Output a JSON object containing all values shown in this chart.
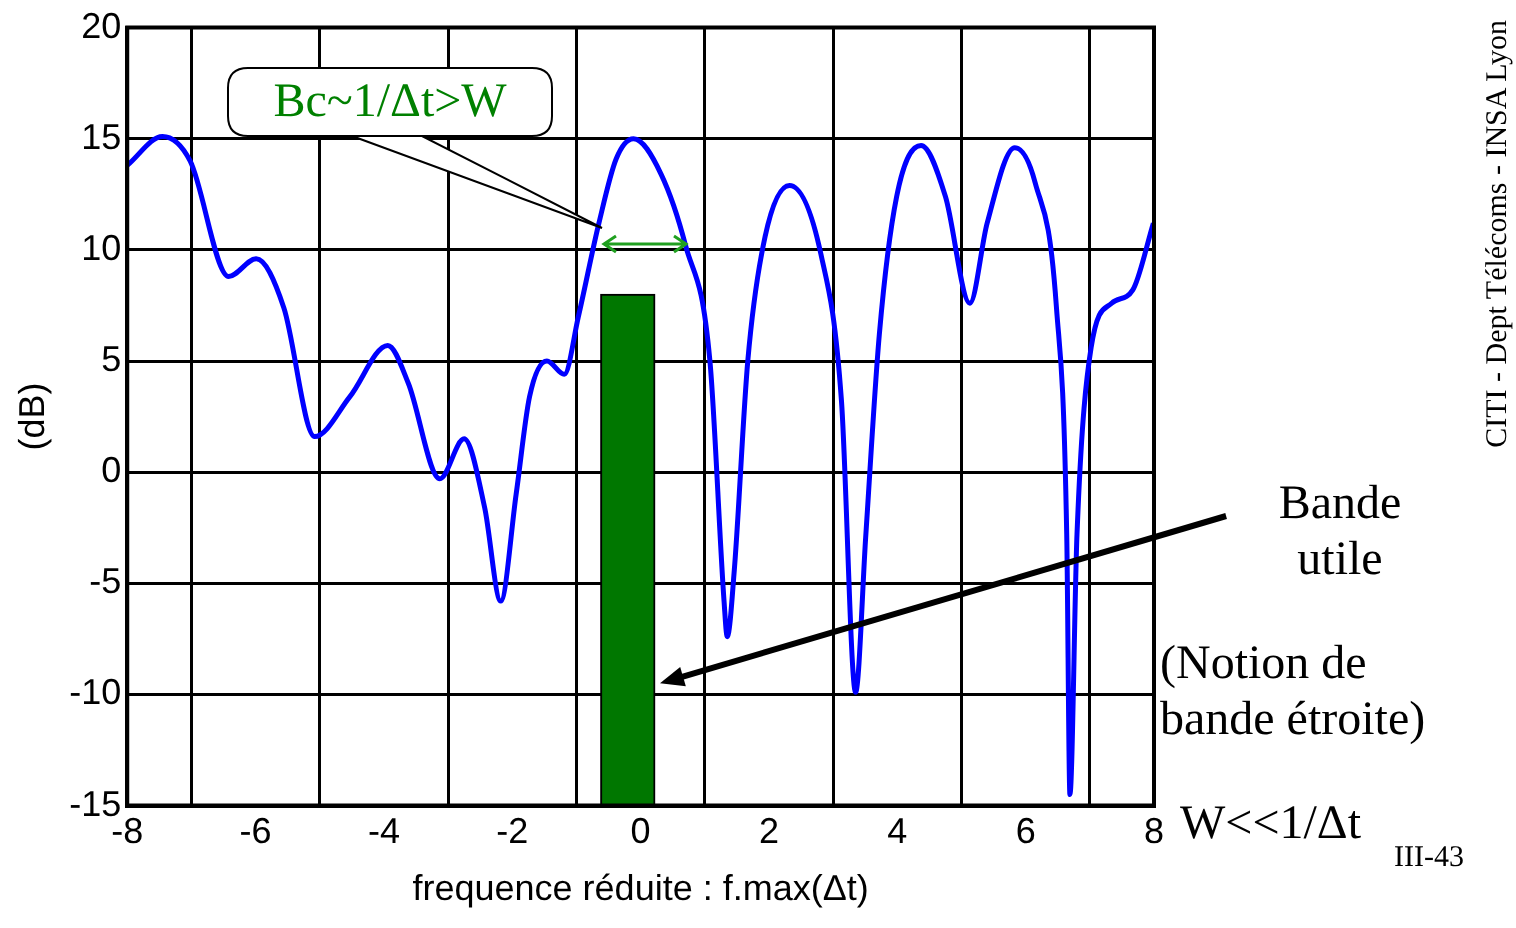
{
  "chart_data": {
    "type": "line",
    "xlabel": "frequence réduite : f.max(Δt)",
    "ylabel": "(dB)",
    "xlim": [
      -8,
      8
    ],
    "xticks": [
      -8,
      -6,
      -4,
      -2,
      0,
      2,
      4,
      6,
      8
    ],
    "ylim": [
      -15,
      20
    ],
    "yticks": [
      -15,
      -10,
      -5,
      0,
      5,
      10,
      15,
      20
    ],
    "grid": true,
    "legend": false,
    "marker": "none",
    "series": [
      {
        "type": "bar",
        "color": "#007700",
        "x": [
          -0.2
        ],
        "values": [
          23
        ],
        "base": [
          -15
        ]
      },
      {
        "color": "#0000ff",
        "x": [
          -8,
          -7.45,
          -7.02,
          -6.42,
          -5.99,
          -5.56,
          -5.08,
          -4.53,
          -3.94,
          -3.62,
          -3.13,
          -2.75,
          -2.43,
          -2.18,
          -1.94,
          -1.73,
          -1.46,
          -1.19,
          -0.97,
          -0.65,
          -0.38,
          -0.11,
          0.32,
          0.7,
          1.08,
          1.3,
          1.35,
          1.46,
          1.67,
          1.94,
          2.32,
          2.81,
          3.13,
          3.35,
          3.51,
          3.72,
          3.99,
          4.37,
          4.75,
          5.13,
          5.4,
          5.83,
          6.15,
          6.48,
          6.64,
          6.69,
          6.8,
          7.02,
          7.34,
          7.67,
          7.99
        ],
        "values": [
          13.8,
          15.1,
          14,
          8.8,
          9.6,
          7.4,
          1.6,
          3.4,
          5.7,
          4,
          -0.3,
          1.5,
          -1.6,
          -5.8,
          -1,
          3.4,
          5,
          4.4,
          7,
          11.2,
          14.1,
          15,
          13.4,
          10.2,
          5,
          -5.8,
          -7.4,
          -4.4,
          5,
          10.6,
          12.9,
          9.8,
          3.2,
          -9.9,
          -2.8,
          6.2,
          12.4,
          14.7,
          12.4,
          7.6,
          11.2,
          14.6,
          13,
          7.4,
          -2.8,
          -14.5,
          -2.8,
          5.6,
          7.6,
          8.2,
          11.2
        ]
      }
    ],
    "annotations": [
      {
        "text": "Bc~1/Δt>W",
        "x": -0.6,
        "y": 11
      },
      {
        "text": "Bande utile",
        "x": 0.3,
        "y": -9.5
      },
      "(Notion de bande étroite)",
      "W<<1/Δt",
      "III-43",
      "CITI - Dept Télécoms - INSA Lyon"
    ]
  }
}
